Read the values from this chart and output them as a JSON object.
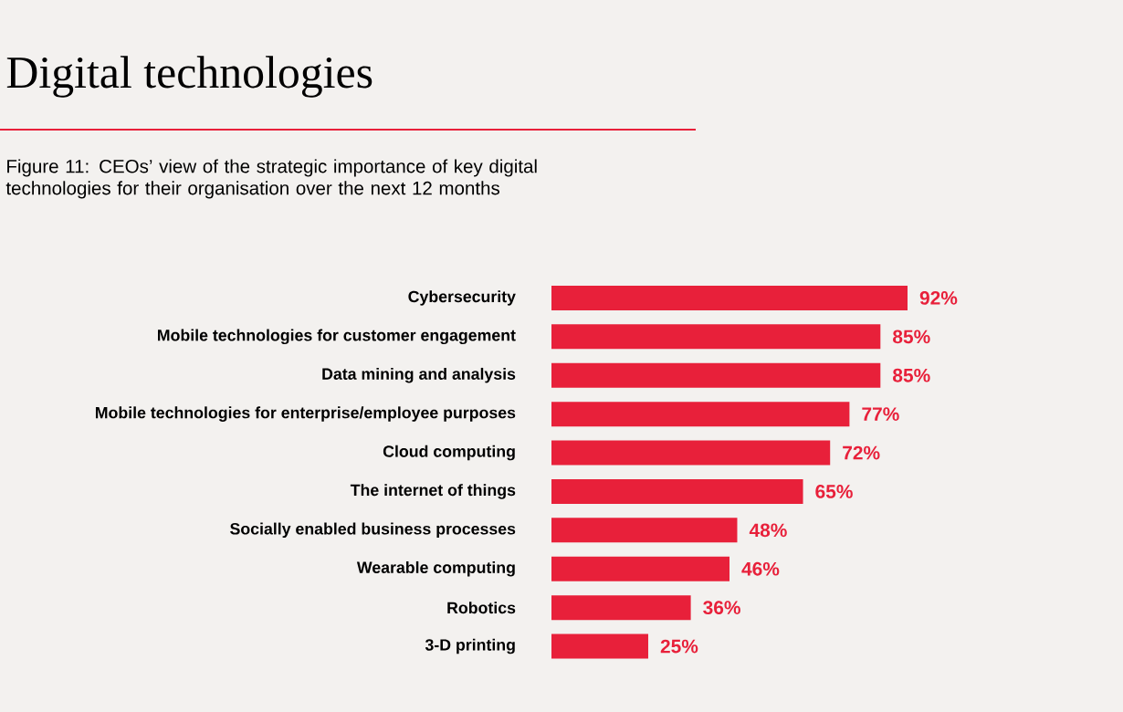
{
  "chart_data": {
    "type": "bar",
    "orientation": "horizontal",
    "title": "Digital technologies",
    "subtitle": "Figure 11: CEOs’ view of the strategic importance of key digital technologies for their organisation over the next 12 months",
    "categories": [
      "Cybersecurity",
      "Mobile technologies for customer engagement",
      "Data mining and analysis",
      "Mobile technologies for enterprise/employee purposes",
      "Cloud computing",
      "The internet of things",
      "Socially enabled business processes",
      "Wearable computing",
      "Robotics",
      "3-D printing"
    ],
    "values": [
      92,
      85,
      85,
      77,
      72,
      65,
      48,
      46,
      36,
      25
    ],
    "value_labels": [
      "92%",
      "85%",
      "85%",
      "77%",
      "72%",
      "65%",
      "48%",
      "46%",
      "36%",
      "25%"
    ],
    "color": "#e8203a"
  }
}
